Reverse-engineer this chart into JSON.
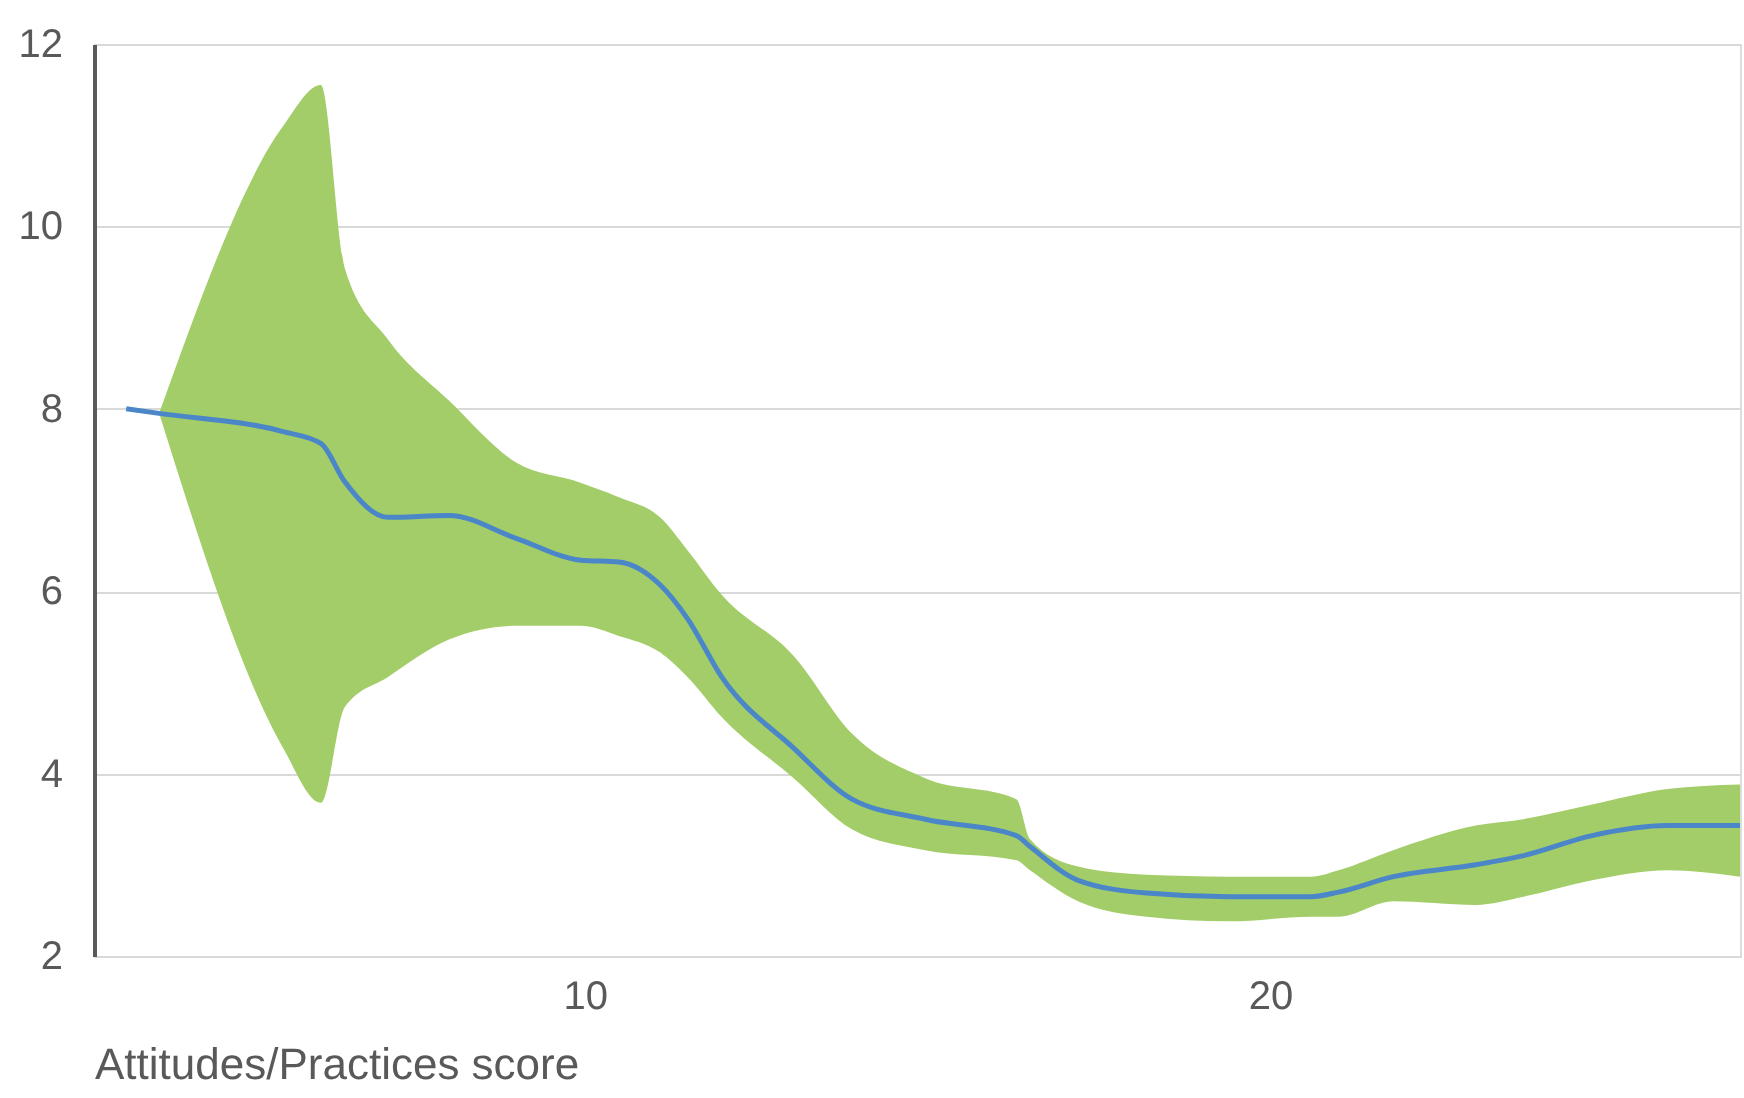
{
  "chart_data": {
    "type": "line",
    "xlabel": "Attitudes/Practices score",
    "xlim": [
      2.84,
      26.86
    ],
    "xticks": [
      10,
      20
    ],
    "ylim": [
      2,
      12
    ],
    "yticks": [
      2,
      4,
      6,
      8,
      10,
      12
    ],
    "grid": "y",
    "series": [
      {
        "color": "#4a86c8",
        "x": [
          3.31,
          3.79,
          5.6,
          6.15,
          6.5,
          7.13,
          8.02,
          9.0,
          9.94,
          10.5,
          11.1,
          11.5,
          12.0,
          13.05,
          13.9,
          14.97,
          16.3,
          16.5,
          17.2,
          18.2,
          19.4,
          20.6,
          21.0,
          21.8,
          23.0,
          23.7,
          24.7,
          25.8,
          26.86
        ],
        "values": [
          8.0,
          7.95,
          7.75,
          7.62,
          7.2,
          6.81,
          6.83,
          6.58,
          6.34,
          6.32,
          6.07,
          5.7,
          5.06,
          4.28,
          3.72,
          3.5,
          3.32,
          3.2,
          2.83,
          2.69,
          2.65,
          2.65,
          2.7,
          2.87,
          3.0,
          3.1,
          3.32,
          3.43,
          3.43
        ],
        "upper": [
          null,
          7.95,
          11.1,
          11.55,
          9.54,
          8.76,
          8.09,
          7.41,
          7.19,
          7.03,
          6.81,
          6.45,
          5.96,
          5.29,
          4.44,
          3.95,
          3.72,
          3.28,
          2.98,
          2.89,
          2.87,
          2.87,
          2.94,
          3.16,
          3.43,
          3.5,
          3.66,
          3.83,
          3.88
        ],
        "lower": [
          null,
          7.95,
          4.28,
          3.68,
          4.73,
          5.06,
          5.47,
          5.62,
          5.62,
          5.51,
          5.33,
          5.06,
          4.62,
          3.95,
          3.39,
          3.16,
          3.05,
          2.94,
          2.6,
          2.43,
          2.38,
          2.43,
          2.43,
          2.6,
          2.56,
          2.65,
          2.83,
          2.94,
          2.87
        ]
      }
    ]
  }
}
